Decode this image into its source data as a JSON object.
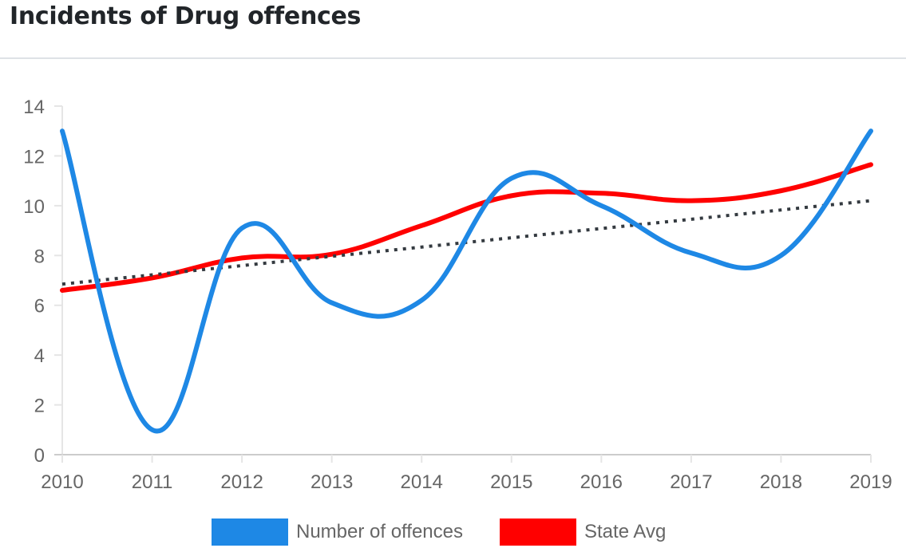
{
  "header": {
    "title": "Incidents of Drug offences"
  },
  "colors": {
    "series_1": "#1e88e5",
    "series_2": "#ff0000",
    "trend": "#343a40",
    "grid": "#e5e5e5",
    "axis_zero": "#cccccc",
    "tick_text": "#666666"
  },
  "chart_data": {
    "type": "line",
    "title": "",
    "xlabel": "",
    "ylabel": "",
    "categories": [
      "2010",
      "2011",
      "2012",
      "2013",
      "2014",
      "2015",
      "2016",
      "2017",
      "2018",
      "2019"
    ],
    "yticks": [
      "0",
      "2",
      "4",
      "6",
      "8",
      "10",
      "12",
      "14"
    ],
    "ylim": [
      0,
      14
    ],
    "grid": false,
    "series": [
      {
        "name": "Number of offences",
        "color": "#1e88e5",
        "values": [
          13,
          1,
          9.1,
          6.1,
          6.2,
          11.1,
          10.0,
          8.1,
          8.0,
          13
        ]
      },
      {
        "name": "State Avg",
        "color": "#ff0000",
        "values": [
          6.6,
          7.1,
          7.9,
          8.05,
          9.2,
          10.4,
          10.5,
          10.2,
          10.6,
          11.65
        ]
      }
    ],
    "trendline": {
      "series": "Number of offences",
      "style": "dotted",
      "color": "#343a40",
      "start": 6.85,
      "end": 10.2
    },
    "legend": {
      "position": "bottom",
      "entries": [
        "Number of offences",
        "State Avg"
      ]
    }
  }
}
